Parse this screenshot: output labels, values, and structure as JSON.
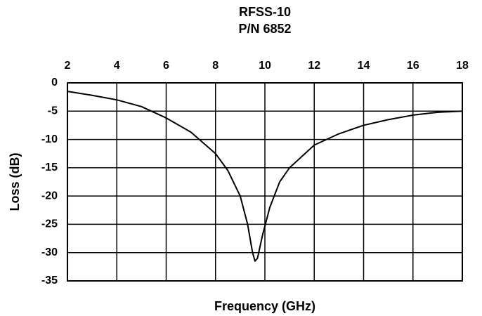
{
  "chart_data": {
    "type": "line",
    "title": "RFSS-10",
    "subtitle": "P/N 6852",
    "xlabel": "Frequency (GHz)",
    "ylabel": "Loss (dB)",
    "x": [
      2,
      3,
      4,
      5,
      6,
      7,
      8,
      8.5,
      9,
      9.3,
      9.5,
      9.6,
      9.7,
      9.9,
      10.2,
      10.6,
      11,
      12,
      13,
      14,
      15,
      16,
      17,
      18
    ],
    "values": [
      -1.5,
      -2.2,
      -3.0,
      -4.2,
      -6.2,
      -8.7,
      -12.5,
      -15.5,
      -20,
      -25,
      -30,
      -31.5,
      -31,
      -27,
      -22,
      -17.5,
      -15,
      -11,
      -9,
      -7.5,
      -6.5,
      -5.7,
      -5.2,
      -5
    ],
    "color": "#000000",
    "xlim": [
      2,
      18
    ],
    "xticks": [
      2,
      4,
      6,
      8,
      10,
      12,
      14,
      16,
      18
    ],
    "ylim": [
      -35,
      0
    ],
    "yticks": [
      0,
      -5,
      -10,
      -15,
      -20,
      -25,
      -30,
      -35
    ],
    "grid": true
  }
}
